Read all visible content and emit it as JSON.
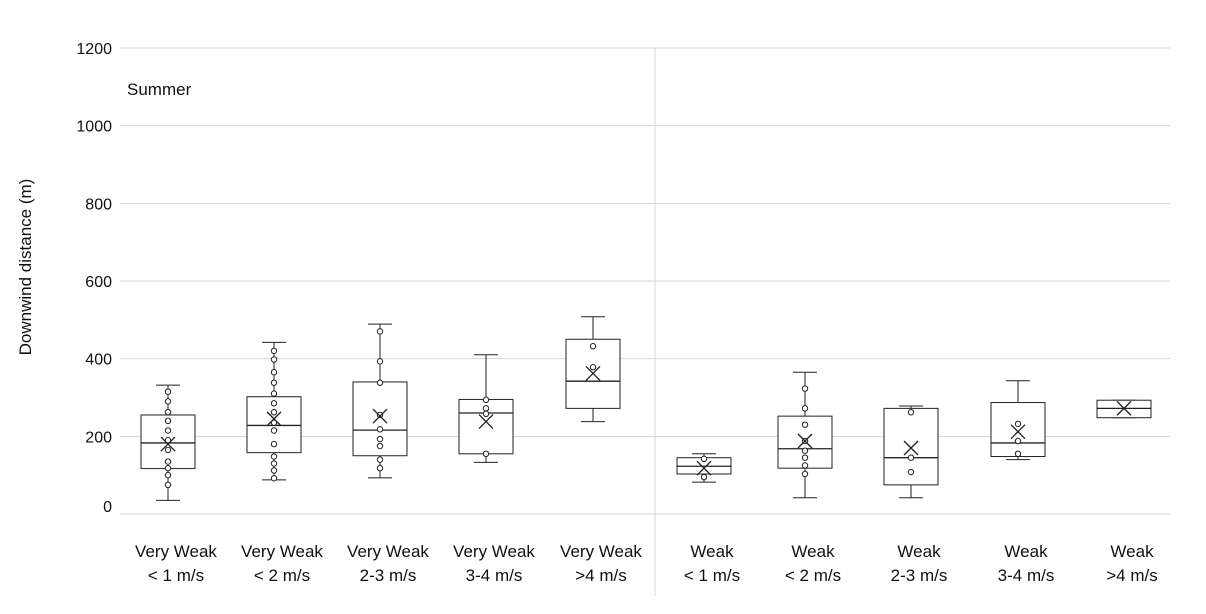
{
  "chart_data": {
    "type": "box",
    "panel_label": "Summer",
    "ylabel": "Downwind distance (m)",
    "ylim": [
      0,
      1200
    ],
    "yticks": [
      0,
      200,
      400,
      600,
      800,
      1000,
      1200
    ],
    "grid": true,
    "categories": [
      {
        "line1": "Very Weak",
        "line2": "< 1 m/s",
        "min": 35,
        "q1": 117,
        "median": 183,
        "q3": 255,
        "max": 332,
        "mean": 180,
        "points": [
          75,
          100,
          118,
          135,
          165,
          190,
          215,
          240,
          262,
          290,
          315
        ]
      },
      {
        "line1": "Very Weak",
        "line2": "< 2 m/s",
        "min": 88,
        "q1": 158,
        "median": 228,
        "q3": 302,
        "max": 442,
        "mean": 245,
        "points": [
          92,
          112,
          130,
          148,
          180,
          215,
          235,
          262,
          285,
          310,
          338,
          365,
          398,
          420
        ]
      },
      {
        "line1": "Very Weak",
        "line2": "2-3 m/s",
        "min": 93,
        "q1": 150,
        "median": 216,
        "q3": 340,
        "max": 489,
        "mean": 252,
        "points": [
          118,
          140,
          175,
          193,
          218,
          255,
          338,
          393,
          470
        ]
      },
      {
        "line1": "Very Weak",
        "line2": "3-4 m/s",
        "min": 133,
        "q1": 155,
        "median": 260,
        "q3": 295,
        "max": 410,
        "mean": 238,
        "points": [
          155,
          258,
          272,
          294
        ]
      },
      {
        "line1": "Very Weak",
        "line2": ">4 m/s",
        "min": 238,
        "q1": 272,
        "median": 342,
        "q3": 450,
        "max": 508,
        "mean": 362,
        "points": [
          378,
          432
        ]
      },
      {
        "line1": "Weak",
        "line2": "< 1 m/s",
        "min": 82,
        "q1": 103,
        "median": 123,
        "q3": 145,
        "max": 155,
        "mean": 118,
        "points": [
          95,
          142
        ]
      },
      {
        "line1": "Weak",
        "line2": "< 2 m/s",
        "min": 42,
        "q1": 118,
        "median": 168,
        "q3": 252,
        "max": 365,
        "mean": 188,
        "points": [
          103,
          125,
          145,
          163,
          188,
          230,
          272,
          323
        ]
      },
      {
        "line1": "Weak",
        "line2": "2-3 m/s",
        "min": 42,
        "q1": 75,
        "median": 145,
        "q3": 272,
        "max": 278,
        "mean": 170,
        "points": [
          108,
          145,
          262
        ]
      },
      {
        "line1": "Weak",
        "line2": "3-4 m/s",
        "min": 140,
        "q1": 148,
        "median": 183,
        "q3": 287,
        "max": 343,
        "mean": 212,
        "points": [
          155,
          188,
          232
        ]
      },
      {
        "line1": "Weak",
        "line2": ">4 m/s",
        "min": 248,
        "q1": 248,
        "median": 272,
        "q3": 293,
        "max": 293,
        "mean": 272,
        "points": []
      }
    ]
  }
}
